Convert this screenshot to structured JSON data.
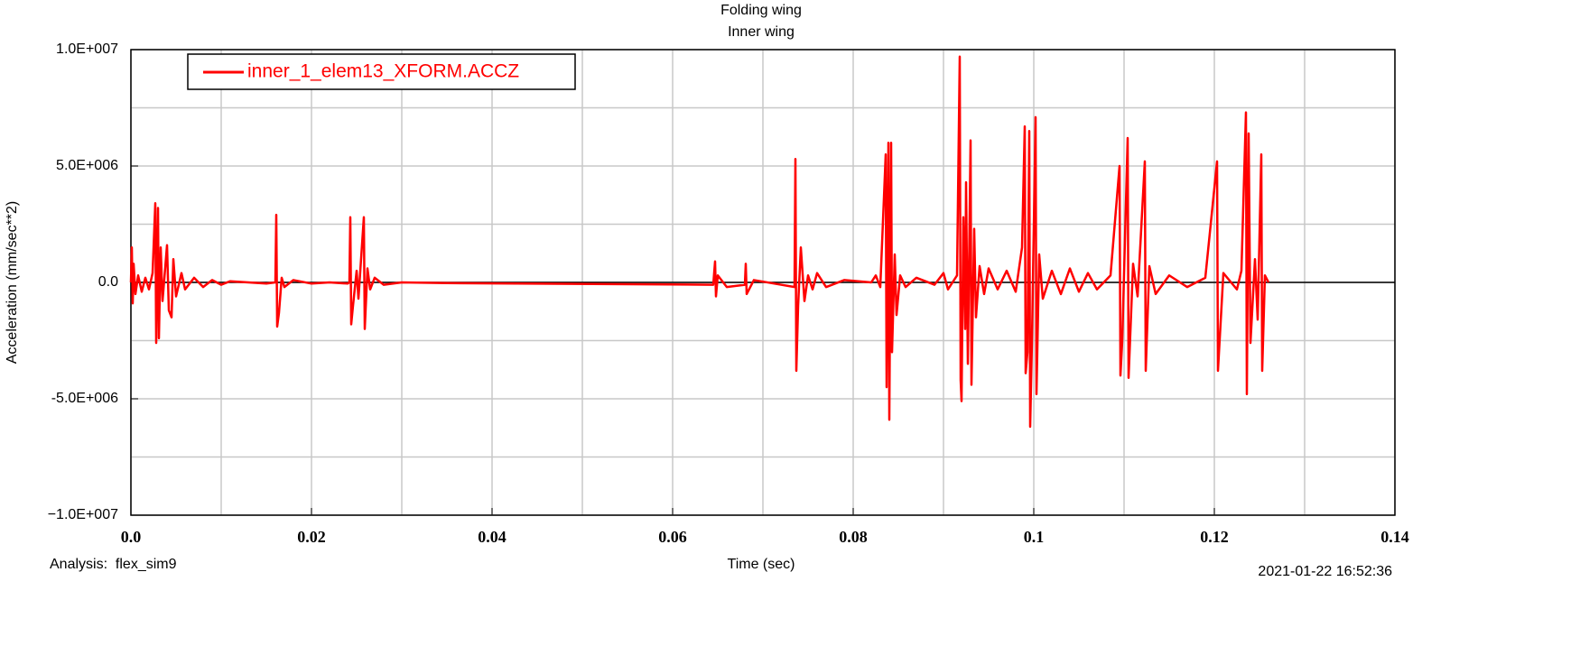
{
  "chart_data": {
    "type": "line",
    "title": "Folding wing",
    "subtitle": "Inner wing",
    "x_label": "Time (sec)",
    "y_label": "Acceleration (mm/sec**2)",
    "analysis": "Analysis:  flex_sim9",
    "timestamp": "2021-01-22 16:52:36",
    "xlim": [
      0,
      0.14
    ],
    "xticks": [
      {
        "value": 0,
        "label": "0.0"
      },
      0.02,
      0.04,
      0.06,
      0.08,
      0.1,
      0.12,
      0.14
    ],
    "xminor_ticks": [
      0.01,
      0.03,
      0.05,
      0.07,
      0.09,
      0.11,
      0.13
    ],
    "ylim": [
      -10000000,
      10000000
    ],
    "yticks": [
      {
        "value": -10000000,
        "label": "−1.0E+007"
      },
      {
        "value": -5000000,
        "label": "-5.0E+006"
      },
      {
        "value": 0,
        "label": "0.0"
      },
      {
        "value": 5000000,
        "label": "5.0E+006"
      },
      {
        "value": 10000000,
        "label": "1.0E+007"
      }
    ],
    "yminor_ticks": [
      -7500000,
      -2500000,
      2500000,
      7500000
    ],
    "grid": true,
    "legend": "top-left",
    "x": [
      0,
      0.0001,
      0.0002,
      0.0003,
      0.0005,
      0.0008,
      0.0012,
      0.0016,
      0.002,
      0.0024,
      0.0027,
      0.0028,
      0.003,
      0.0031,
      0.0033,
      0.0035,
      0.004,
      0.0042,
      0.0045,
      0.0047,
      0.005,
      0.0056,
      0.006,
      0.007,
      0.008,
      0.009,
      0.01,
      0.011,
      0.013,
      0.015,
      0.016,
      0.0161,
      0.0162,
      0.0164,
      0.0167,
      0.017,
      0.018,
      0.02,
      0.022,
      0.024,
      0.0242,
      0.0243,
      0.0244,
      0.0246,
      0.025,
      0.0252,
      0.0258,
      0.0259,
      0.0262,
      0.0265,
      0.027,
      0.028,
      0.03,
      0.035,
      0.0645,
      0.0647,
      0.0648,
      0.065,
      0.066,
      0.068,
      0.0681,
      0.0682,
      0.069,
      0.072,
      0.0735,
      0.0736,
      0.0737,
      0.0739,
      0.0742,
      0.0746,
      0.075,
      0.0755,
      0.076,
      0.077,
      0.079,
      0.082,
      0.0825,
      0.083,
      0.0836,
      0.0837,
      0.0839,
      0.084,
      0.0842,
      0.0843,
      0.0846,
      0.0848,
      0.0852,
      0.0858,
      0.087,
      0.089,
      0.09,
      0.0905,
      0.091,
      0.0915,
      0.0918,
      0.0919,
      0.092,
      0.0922,
      0.0924,
      0.0925,
      0.0927,
      0.093,
      0.0931,
      0.0934,
      0.0936,
      0.094,
      0.0945,
      0.095,
      0.096,
      0.097,
      0.098,
      0.0987,
      0.099,
      0.0991,
      0.0993,
      0.0995,
      0.0996,
      0.0998,
      0.1002,
      0.1003,
      0.1006,
      0.101,
      0.102,
      0.103,
      0.104,
      0.105,
      0.106,
      0.107,
      0.1085,
      0.1095,
      0.1096,
      0.1098,
      0.1104,
      0.1105,
      0.111,
      0.1115,
      0.1123,
      0.1124,
      0.1128,
      0.1135,
      0.115,
      0.117,
      0.119,
      0.1203,
      0.1204,
      0.121,
      0.1225,
      0.123,
      0.1235,
      0.1236,
      0.1238,
      0.124,
      0.1245,
      0.1248,
      0.1252,
      0.1253,
      0.1256,
      0.126
    ],
    "series": [
      {
        "name": "inner_1_elem13_XFORM.ACCZ",
        "color": "#ff0000",
        "values": [
          0,
          1500000,
          -900000,
          800000,
          -500000,
          300000,
          -400000,
          200000,
          -300000,
          400000,
          3400000,
          -2600000,
          3200000,
          -2400000,
          1500000,
          -800000,
          1600000,
          -1200000,
          -1500000,
          1000000,
          -600000,
          400000,
          -300000,
          200000,
          -200000,
          100000,
          -100000,
          50000,
          0,
          -50000,
          0,
          2900000,
          -1900000,
          -1300000,
          200000,
          -200000,
          100000,
          -50000,
          0,
          -50000,
          0,
          2800000,
          -1800000,
          -1000000,
          500000,
          -700000,
          2800000,
          -2000000,
          600000,
          -300000,
          200000,
          -100000,
          0,
          -30000,
          -100000,
          900000,
          -600000,
          300000,
          -200000,
          -100000,
          800000,
          -500000,
          100000,
          -100000,
          -200000,
          5300000,
          -3800000,
          -1000000,
          1500000,
          -800000,
          300000,
          -300000,
          400000,
          -200000,
          100000,
          0,
          300000,
          -200000,
          5500000,
          -4500000,
          6000000,
          -5900000,
          6000000,
          -3000000,
          1200000,
          -1400000,
          300000,
          -200000,
          200000,
          -100000,
          400000,
          -300000,
          0,
          300000,
          9700000,
          -4200000,
          -5100000,
          2800000,
          -2000000,
          4300000,
          -3500000,
          6100000,
          -4400000,
          2300000,
          -1500000,
          700000,
          -500000,
          600000,
          -300000,
          500000,
          -400000,
          1500000,
          6700000,
          -3900000,
          -3000000,
          6500000,
          -6200000,
          -2500000,
          7100000,
          -4800000,
          1200000,
          -700000,
          500000,
          -500000,
          600000,
          -400000,
          400000,
          -300000,
          300000,
          5000000,
          -4000000,
          -2500000,
          6200000,
          -4100000,
          800000,
          -600000,
          5200000,
          -3800000,
          700000,
          -500000,
          300000,
          -200000,
          200000,
          5200000,
          -3800000,
          400000,
          -300000,
          500000,
          7300000,
          -4800000,
          6400000,
          -2600000,
          1000000,
          -1600000,
          5500000,
          -3800000,
          300000,
          0
        ]
      }
    ]
  }
}
